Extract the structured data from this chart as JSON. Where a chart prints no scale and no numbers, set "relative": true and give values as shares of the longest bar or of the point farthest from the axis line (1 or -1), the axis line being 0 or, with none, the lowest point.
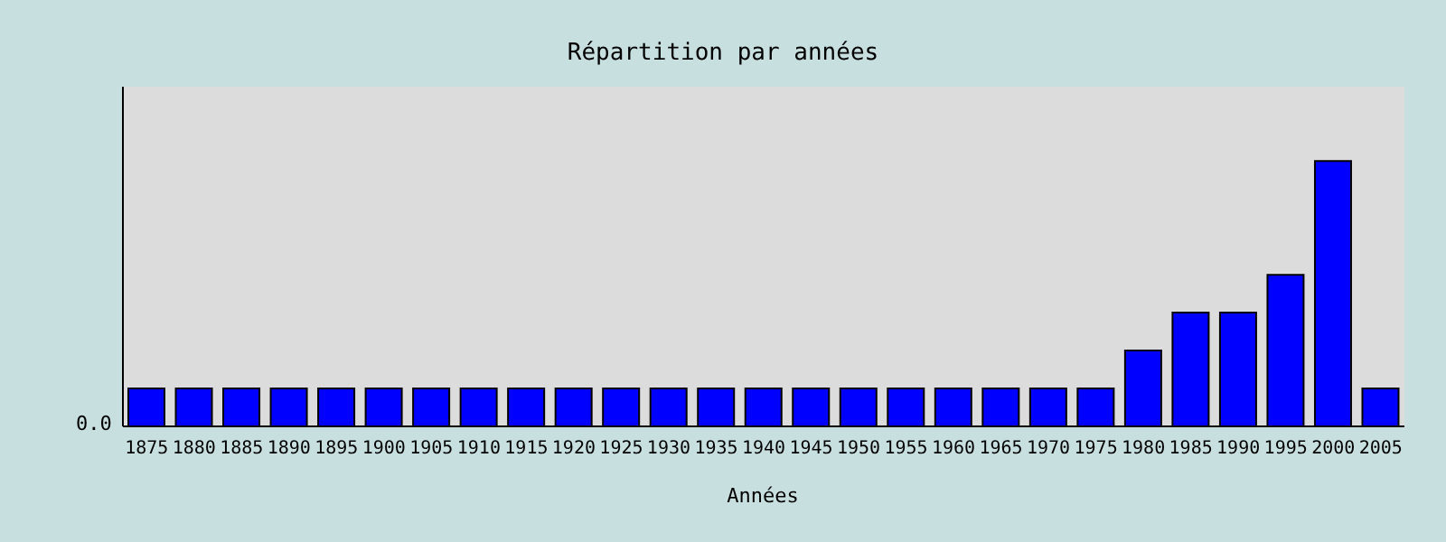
{
  "chart_data": {
    "type": "bar",
    "title": "Répartition par années",
    "xlabel": "Années",
    "relative": true,
    "categories": [
      "1875",
      "1880",
      "1885",
      "1890",
      "1895",
      "1900",
      "1905",
      "1910",
      "1915",
      "1920",
      "1925",
      "1930",
      "1935",
      "1940",
      "1945",
      "1950",
      "1955",
      "1960",
      "1965",
      "1970",
      "1975",
      "1980",
      "1985",
      "1990",
      "1995",
      "2000",
      "2005"
    ],
    "values": [
      0.143,
      0.143,
      0.143,
      0.143,
      0.143,
      0.143,
      0.143,
      0.143,
      0.143,
      0.143,
      0.143,
      0.143,
      0.143,
      0.143,
      0.143,
      0.143,
      0.143,
      0.143,
      0.143,
      0.143,
      0.143,
      0.286,
      0.429,
      0.429,
      0.571,
      1,
      0.143
    ],
    "color": "#0000ff",
    "annotations": [
      "0.0"
    ]
  }
}
